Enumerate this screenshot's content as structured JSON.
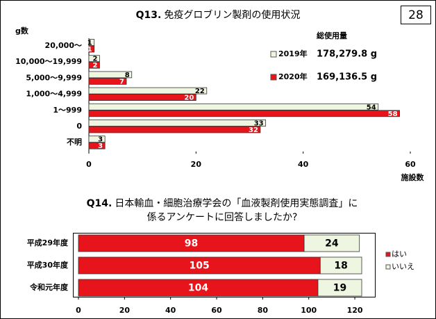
{
  "page_number": "28",
  "chart_data": [
    {
      "type": "bar",
      "orientation": "horizontal",
      "stacked": false,
      "title_prefix": "Q13.",
      "title": "免疫グロブリン製剤の使用状況",
      "y_label": "g数",
      "x_label": "施設数",
      "legend_title": "総使用量",
      "categories": [
        "20,000～",
        "10,000～19,999",
        "5,000～9,999",
        "1,000～4,999",
        "1～999",
        "0",
        "不明"
      ],
      "series": [
        {
          "name": "2019年",
          "total": "178,279.8 g",
          "color": "#eef5e0",
          "values": [
            1,
            2,
            8,
            22,
            54,
            33,
            3
          ]
        },
        {
          "name": "2020年",
          "total": "169,136.5 g",
          "color": "#e8141b",
          "values": [
            1,
            2,
            7,
            20,
            58,
            32,
            3
          ]
        }
      ],
      "xlim": [
        0,
        60
      ],
      "xticks": [
        0,
        20,
        40,
        60
      ]
    },
    {
      "type": "bar",
      "orientation": "horizontal",
      "stacked": true,
      "title_prefix": "Q14.",
      "title": [
        "日本輸血・細胞治療学会の「血液製剤使用実態調査」に",
        "係るアンケートに回答しましたか?"
      ],
      "categories": [
        "平成29年度",
        "平成30年度",
        "令和元年度"
      ],
      "series": [
        {
          "name": "はい",
          "color": "#e8141b",
          "values": [
            98,
            105,
            104
          ]
        },
        {
          "name": "いいえ",
          "color": "#eef5e0",
          "values": [
            24,
            18,
            19
          ]
        }
      ],
      "xlim": [
        0,
        128
      ],
      "xticks": [
        0,
        20,
        40,
        60,
        80,
        100,
        120
      ]
    }
  ]
}
